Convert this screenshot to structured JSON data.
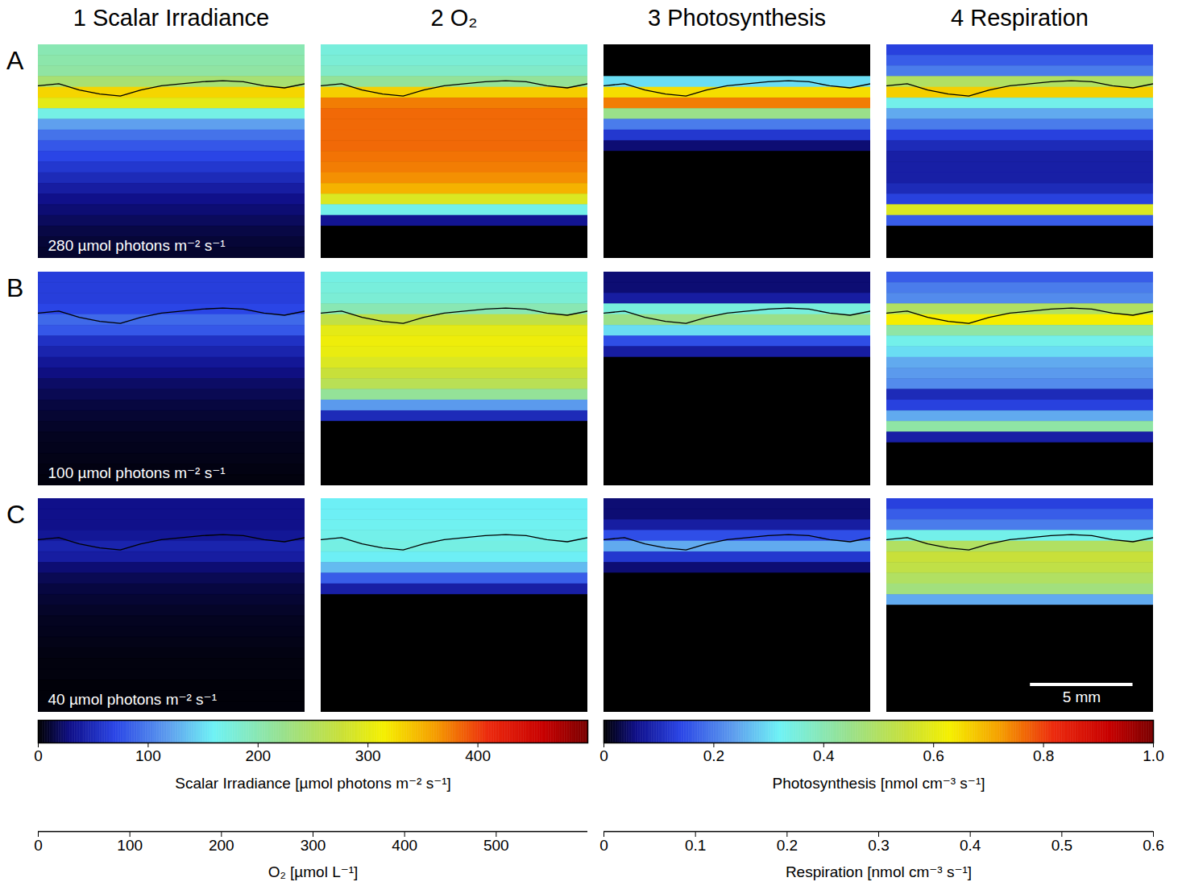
{
  "chart_data": {
    "type": "heatmap",
    "tick_labels": false,
    "columns": [
      "1 Scalar Irradiance",
      "2 O₂",
      "3 Photosynthesis",
      "4 Respiration"
    ],
    "rows": [
      {
        "label": "A",
        "annotation": "280 µmol photons m⁻² s⁻¹"
      },
      {
        "label": "B",
        "annotation": "100 µmol photons m⁻² s⁻¹"
      },
      {
        "label": "C",
        "annotation": "40 µmol photons m⁻² s⁻¹"
      }
    ],
    "xlim": [
      0,
      13
    ],
    "ylim": [
      0,
      10.4
    ],
    "depth_mm": [
      0,
      0.52,
      1.04,
      1.56,
      2.08,
      2.6,
      3.12,
      3.64,
      4.16,
      4.68,
      5.2,
      5.72,
      6.24,
      6.76,
      7.28,
      7.8,
      8.32,
      8.84,
      9.36,
      9.88,
      10.4
    ],
    "surface": {
      "x_mm": [
        0,
        1,
        2,
        3,
        4,
        5,
        6,
        7,
        8,
        9,
        10,
        11,
        12,
        13
      ],
      "depth_mm": [
        2.0,
        1.9,
        2.2,
        2.4,
        2.5,
        2.2,
        2.0,
        1.9,
        1.8,
        1.75,
        1.8,
        2.0,
        2.1,
        1.9
      ]
    },
    "cells": [
      [
        [
          200,
          205,
          210,
          240,
          330,
          300,
          170,
          120,
          95,
          80,
          70,
          60,
          50,
          40,
          30,
          25,
          20,
          15,
          12,
          10
        ],
        [
          210,
          215,
          225,
          260,
          400,
          450,
          460,
          460,
          460,
          460,
          455,
          450,
          440,
          420,
          350,
          200,
          40,
          0,
          0,
          0
        ],
        [
          0,
          0,
          0,
          0.3,
          0.65,
          0.75,
          0.45,
          0.2,
          0.12,
          0.05,
          0,
          0,
          0,
          0,
          0,
          0,
          0,
          0,
          0,
          0
        ],
        [
          0.08,
          0.1,
          0.12,
          0.3,
          0.4,
          0.2,
          0.15,
          0.12,
          0.08,
          0.06,
          0.05,
          0.05,
          0.05,
          0.06,
          0.08,
          0.35,
          0.1,
          0,
          0,
          0
        ]
      ],
      [
        [
          65,
          65,
          65,
          70,
          90,
          80,
          55,
          45,
          35,
          28,
          22,
          18,
          14,
          11,
          9,
          7,
          6,
          5,
          4,
          3
        ],
        [
          205,
          210,
          215,
          240,
          320,
          360,
          370,
          365,
          350,
          330,
          310,
          260,
          140,
          60,
          0,
          0,
          0,
          0,
          0,
          0
        ],
        [
          0.05,
          0.05,
          0.08,
          0.35,
          0.45,
          0.3,
          0.15,
          0.08,
          0,
          0,
          0,
          0,
          0,
          0,
          0,
          0,
          0,
          0,
          0,
          0
        ],
        [
          0.1,
          0.12,
          0.13,
          0.3,
          0.38,
          0.25,
          0.2,
          0.18,
          0.15,
          0.14,
          0.13,
          0.06,
          0.08,
          0.15,
          0.25,
          0.05,
          0,
          0,
          0,
          0
        ]
      ],
      [
        [
          30,
          30,
          30,
          35,
          45,
          40,
          25,
          18,
          14,
          11,
          9,
          7,
          6,
          5,
          4,
          3,
          3,
          2,
          2,
          2
        ],
        [
          190,
          190,
          195,
          200,
          205,
          190,
          160,
          100,
          50,
          0,
          0,
          0,
          0,
          0,
          0,
          0,
          0,
          0,
          0,
          0
        ],
        [
          0.05,
          0.05,
          0.08,
          0.15,
          0.25,
          0.12,
          0.05,
          0,
          0,
          0,
          0,
          0,
          0,
          0,
          0,
          0,
          0,
          0,
          0,
          0
        ],
        [
          0.08,
          0.1,
          0.12,
          0.2,
          0.3,
          0.33,
          0.32,
          0.3,
          0.28,
          0.15,
          0,
          0,
          0,
          0,
          0,
          0,
          0,
          0,
          0,
          0
        ]
      ]
    ],
    "color_scales": [
      {
        "label": "Scalar Irradiance [µmol photons m⁻² s⁻¹]",
        "lim": [
          0,
          500
        ],
        "ticks": [
          0,
          100,
          200,
          300,
          400
        ]
      },
      {
        "label": "O₂ [µmol L⁻¹]",
        "lim": [
          0,
          600
        ],
        "ticks": [
          0,
          100,
          200,
          300,
          400,
          500
        ]
      },
      {
        "label": "Photosynthesis [nmol cm⁻³ s⁻¹]",
        "lim": [
          0,
          1
        ],
        "ticks": [
          0,
          0.2,
          0.4,
          0.6,
          0.8,
          {
            "value": 1,
            "label": "1.0"
          }
        ]
      },
      {
        "label": "Respiration [nmol cm⁻³ s⁻¹]",
        "lim": [
          0,
          0.6
        ],
        "ticks": [
          0,
          0.1,
          0.2,
          0.3,
          0.4,
          0.5,
          0.6
        ]
      }
    ],
    "scale_bar": {
      "label": "5 mm",
      "length_mm": 5
    }
  }
}
